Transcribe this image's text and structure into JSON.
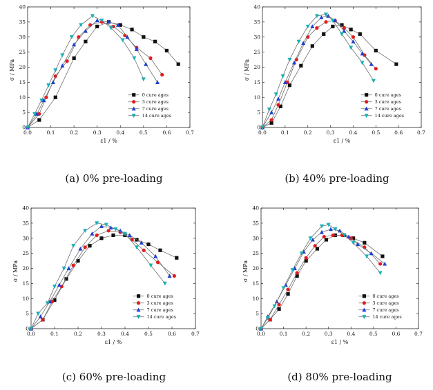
{
  "chart_data": [
    {
      "type": "line",
      "caption": "(a) 0% pre-loading",
      "xlabel": "ε1 / %",
      "ylabel": "σ / MPa",
      "xlim": [
        0,
        0.7
      ],
      "ylim": [
        0,
        40
      ],
      "xticks": [
        "0.0",
        "0.1",
        "0.2",
        "0.3",
        "0.4",
        "0.5",
        "0.6",
        "0.7"
      ],
      "yticks": [
        "0",
        "5",
        "10",
        "15",
        "20",
        "25",
        "30",
        "35",
        "40"
      ],
      "legend_position": "bottom-right",
      "series": [
        {
          "name": "0 cure ages",
          "color": "#111111",
          "marker": "square",
          "x": [
            0.0,
            0.05,
            0.12,
            0.2,
            0.25,
            0.3,
            0.35,
            0.4,
            0.45,
            0.5,
            0.55,
            0.6,
            0.65
          ],
          "y": [
            0.0,
            2.5,
            10.0,
            23.0,
            28.5,
            33.5,
            35.0,
            34.0,
            32.5,
            30.0,
            28.5,
            25.5,
            21.0
          ]
        },
        {
          "name": "3 cure ages",
          "color": "#e41a1c",
          "marker": "circle",
          "x": [
            0.0,
            0.05,
            0.08,
            0.12,
            0.17,
            0.22,
            0.27,
            0.32,
            0.37,
            0.42,
            0.47,
            0.53,
            0.58
          ],
          "y": [
            0.0,
            4.5,
            10.0,
            17.0,
            22.0,
            30.0,
            34.0,
            35.0,
            33.5,
            30.5,
            26.5,
            23.0,
            17.5
          ]
        },
        {
          "name": "7 cure ages",
          "color": "#1f3fd1",
          "marker": "triangle-up",
          "x": [
            0.0,
            0.04,
            0.07,
            0.11,
            0.15,
            0.2,
            0.25,
            0.3,
            0.35,
            0.39,
            0.43,
            0.47,
            0.51,
            0.56
          ],
          "y": [
            0.0,
            4.5,
            9.0,
            15.0,
            20.5,
            27.5,
            32.0,
            35.5,
            35.0,
            34.0,
            30.0,
            26.0,
            21.0,
            15.0
          ]
        },
        {
          "name": "14 cure ages",
          "color": "#17b0b5",
          "marker": "triangle-down",
          "x": [
            0.0,
            0.03,
            0.06,
            0.09,
            0.12,
            0.15,
            0.19,
            0.23,
            0.28,
            0.32,
            0.36,
            0.41,
            0.46,
            0.5
          ],
          "y": [
            0.0,
            4.5,
            9.0,
            14.0,
            19.0,
            24.0,
            30.0,
            34.0,
            37.0,
            35.5,
            33.0,
            29.0,
            23.0,
            16.0
          ]
        }
      ]
    },
    {
      "type": "line",
      "caption": "(b) 40% pre-loading",
      "xlabel": "ε1 / %",
      "ylabel": "σ / MPa",
      "xlim": [
        0,
        0.7
      ],
      "ylim": [
        0,
        40
      ],
      "xticks": [
        "0.0",
        "0.1",
        "0.2",
        "0.3",
        "0.4",
        "0.5",
        "0.6",
        "0.7"
      ],
      "yticks": [
        "0",
        "5",
        "10",
        "15",
        "20",
        "25",
        "30",
        "35",
        "40"
      ],
      "legend_position": "bottom-right",
      "series": [
        {
          "name": "0 cure ages",
          "color": "#111111",
          "marker": "square",
          "x": [
            0.0,
            0.04,
            0.08,
            0.12,
            0.17,
            0.22,
            0.27,
            0.31,
            0.35,
            0.39,
            0.43,
            0.5,
            0.59
          ],
          "y": [
            0.0,
            1.5,
            7.0,
            14.0,
            20.5,
            27.0,
            31.0,
            33.5,
            34.0,
            32.5,
            31.0,
            25.5,
            21.0
          ]
        },
        {
          "name": "3 cure ages",
          "color": "#e41a1c",
          "marker": "circle",
          "x": [
            0.0,
            0.04,
            0.07,
            0.11,
            0.15,
            0.2,
            0.24,
            0.28,
            0.32,
            0.36,
            0.4,
            0.45,
            0.5
          ],
          "y": [
            0.0,
            2.5,
            7.5,
            15.0,
            22.5,
            30.0,
            33.0,
            35.0,
            35.5,
            33.0,
            30.0,
            24.0,
            19.5
          ]
        },
        {
          "name": "7 cure ages",
          "color": "#1f3fd1",
          "marker": "triangle-up",
          "x": [
            0.0,
            0.04,
            0.07,
            0.1,
            0.14,
            0.18,
            0.22,
            0.26,
            0.29,
            0.32,
            0.36,
            0.4,
            0.44,
            0.48
          ],
          "y": [
            0.0,
            5.0,
            9.5,
            15.0,
            21.5,
            28.0,
            33.5,
            36.5,
            37.0,
            35.5,
            32.0,
            28.5,
            24.5,
            21.0
          ]
        },
        {
          "name": "14 cure ages",
          "color": "#17b0b5",
          "marker": "triangle-down",
          "x": [
            0.0,
            0.03,
            0.06,
            0.09,
            0.12,
            0.16,
            0.2,
            0.24,
            0.28,
            0.31,
            0.35,
            0.39,
            0.44,
            0.49
          ],
          "y": [
            0.0,
            6.0,
            11.0,
            17.0,
            22.5,
            28.5,
            33.5,
            37.0,
            37.5,
            35.5,
            31.0,
            26.5,
            21.5,
            15.5
          ]
        }
      ]
    },
    {
      "type": "line",
      "caption": "(c) 60% pre-loading",
      "xlabel": "ε1 / %",
      "ylabel": "σ / MPa",
      "xlim": [
        0,
        0.7
      ],
      "ylim": [
        0,
        40
      ],
      "xticks": [
        "0.0",
        "0.1",
        "0.2",
        "0.3",
        "0.4",
        "0.5",
        "0.6",
        "0.7"
      ],
      "yticks": [
        "0",
        "5",
        "10",
        "15",
        "20",
        "25",
        "30",
        "35",
        "40"
      ],
      "legend_position": "bottom-right",
      "series": [
        {
          "name": "0 cure ages",
          "color": "#111111",
          "marker": "square",
          "x": [
            0.0,
            0.05,
            0.1,
            0.15,
            0.2,
            0.25,
            0.3,
            0.35,
            0.4,
            0.45,
            0.5,
            0.55,
            0.62
          ],
          "y": [
            0.0,
            3.0,
            9.5,
            16.5,
            22.5,
            27.5,
            30.0,
            31.0,
            31.0,
            29.5,
            28.0,
            26.0,
            23.5
          ]
        },
        {
          "name": "3 cure ages",
          "color": "#e41a1c",
          "marker": "circle",
          "x": [
            0.0,
            0.05,
            0.09,
            0.13,
            0.18,
            0.23,
            0.28,
            0.33,
            0.38,
            0.43,
            0.48,
            0.54,
            0.61
          ],
          "y": [
            0.0,
            3.0,
            9.0,
            14.0,
            21.0,
            27.0,
            31.0,
            32.5,
            32.0,
            29.5,
            26.0,
            22.0,
            17.5
          ]
        },
        {
          "name": "7 cure ages",
          "color": "#1f3fd1",
          "marker": "triangle-up",
          "x": [
            0.0,
            0.04,
            0.08,
            0.12,
            0.16,
            0.21,
            0.26,
            0.3,
            0.34,
            0.38,
            0.42,
            0.47,
            0.53,
            0.59
          ],
          "y": [
            0.0,
            4.0,
            9.0,
            14.5,
            20.0,
            26.5,
            31.5,
            34.0,
            33.5,
            32.5,
            31.0,
            28.5,
            24.0,
            17.5
          ]
        },
        {
          "name": "14 cure ages",
          "color": "#17b0b5",
          "marker": "triangle-down",
          "x": [
            0.0,
            0.03,
            0.07,
            0.1,
            0.14,
            0.18,
            0.23,
            0.28,
            0.32,
            0.36,
            0.4,
            0.45,
            0.51,
            0.57
          ],
          "y": [
            0.0,
            5.0,
            8.5,
            14.0,
            20.0,
            27.5,
            32.5,
            35.0,
            34.5,
            33.0,
            31.5,
            27.0,
            21.0,
            15.0
          ]
        }
      ]
    },
    {
      "type": "line",
      "caption": "(d) 80% pre-loading",
      "xlabel": "ε1 / %",
      "ylabel": "σ / MPa",
      "xlim": [
        0,
        0.7
      ],
      "ylim": [
        0,
        40
      ],
      "xticks": [
        "0.0",
        "0.1",
        "0.2",
        "0.3",
        "0.4",
        "0.5",
        "0.6",
        "0.7"
      ],
      "yticks": [
        "0",
        "5",
        "10",
        "15",
        "20",
        "25",
        "30",
        "35",
        "40"
      ],
      "legend_position": "bottom-right",
      "series": [
        {
          "name": "0 cure ages",
          "color": "#111111",
          "marker": "square",
          "x": [
            0.0,
            0.04,
            0.08,
            0.12,
            0.16,
            0.2,
            0.25,
            0.29,
            0.33,
            0.37,
            0.41,
            0.46,
            0.54
          ],
          "y": [
            0.0,
            3.0,
            6.5,
            11.5,
            17.5,
            22.5,
            26.5,
            29.5,
            31.0,
            31.0,
            30.0,
            28.5,
            24.0
          ]
        },
        {
          "name": "3 cure ages",
          "color": "#e41a1c",
          "marker": "circle",
          "x": [
            0.0,
            0.04,
            0.08,
            0.12,
            0.16,
            0.2,
            0.24,
            0.28,
            0.32,
            0.36,
            0.4,
            0.46,
            0.53
          ],
          "y": [
            0.0,
            3.0,
            8.0,
            13.0,
            18.5,
            23.5,
            27.5,
            30.5,
            31.0,
            31.0,
            30.0,
            27.0,
            21.5
          ]
        },
        {
          "name": "7 cure ages",
          "color": "#1f3fd1",
          "marker": "triangle-up",
          "x": [
            0.0,
            0.03,
            0.07,
            0.11,
            0.15,
            0.19,
            0.23,
            0.27,
            0.31,
            0.35,
            0.39,
            0.43,
            0.49,
            0.55
          ],
          "y": [
            0.0,
            4.0,
            9.0,
            14.5,
            20.0,
            25.5,
            29.5,
            32.0,
            33.0,
            32.5,
            30.5,
            28.0,
            25.0,
            21.5
          ]
        },
        {
          "name": "14 cure ages",
          "color": "#17b0b5",
          "marker": "triangle-down",
          "x": [
            0.0,
            0.03,
            0.06,
            0.1,
            0.14,
            0.18,
            0.22,
            0.27,
            0.3,
            0.33,
            0.37,
            0.41,
            0.47,
            0.53
          ],
          "y": [
            0.0,
            3.5,
            7.5,
            13.5,
            19.5,
            25.0,
            30.0,
            34.0,
            34.5,
            33.0,
            31.0,
            28.5,
            24.0,
            18.5
          ]
        }
      ]
    }
  ]
}
